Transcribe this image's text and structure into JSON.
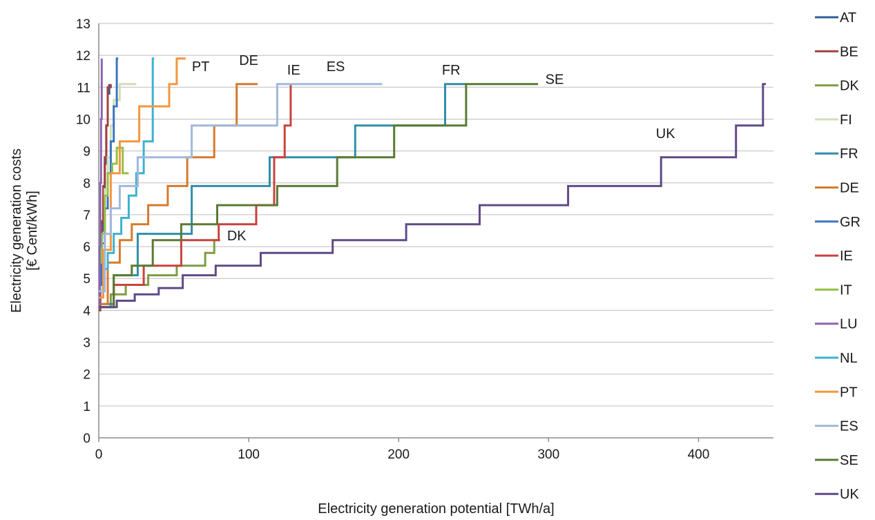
{
  "chart_data": {
    "type": "line",
    "step": true,
    "xlabel": "Electricity generation potential [TWh/a]",
    "ylabel": "Electricity generation costs [€ Cent/kWh]",
    "ylabel_lines": [
      "Electricity generation costs",
      "[€ Cent/kWh]"
    ],
    "xlim": [
      0,
      450
    ],
    "ylim": [
      0,
      13
    ],
    "xticks": [
      0,
      100,
      200,
      300,
      400
    ],
    "yticks": [
      0,
      1,
      2,
      3,
      4,
      5,
      6,
      7,
      8,
      9,
      10,
      11,
      12,
      13
    ],
    "grid": "horizontal",
    "legend_position": "right",
    "series": [
      {
        "name": "AT",
        "color": "#2e5f96",
        "x": [
          0,
          1,
          2,
          3,
          4,
          5,
          6,
          7
        ],
        "y": [
          4.1,
          5.2,
          6.5,
          7.6,
          8.6,
          9.8,
          10.8,
          11.1
        ]
      },
      {
        "name": "BE",
        "color": "#a4403d",
        "x": [
          0,
          1,
          2,
          3,
          4,
          5,
          6,
          8
        ],
        "y": [
          4.0,
          5.5,
          6.8,
          7.9,
          8.8,
          9.8,
          11.0,
          11.1
        ]
      },
      {
        "name": "DK",
        "color": "#7f9c43",
        "x": [
          0,
          8,
          18,
          33,
          52,
          71,
          77,
          81
        ],
        "y": [
          4.1,
          4.5,
          4.8,
          5.1,
          5.4,
          5.8,
          6.2,
          6.2
        ]
      },
      {
        "name": "FI",
        "color": "#cfdfb6",
        "x": [
          0,
          2,
          4,
          6,
          8,
          10,
          14,
          25
        ],
        "y": [
          4.6,
          6.3,
          7.8,
          8.8,
          9.8,
          10.6,
          11.1,
          11.1
        ]
      },
      {
        "name": "FR",
        "color": "#2f8ea8",
        "x": [
          0,
          10,
          26,
          62,
          114,
          171,
          231,
          245
        ],
        "y": [
          4.2,
          5.1,
          6.4,
          7.9,
          8.8,
          9.8,
          11.1,
          11.1
        ]
      },
      {
        "name": "DE",
        "color": "#d57a2d",
        "x": [
          0,
          6,
          14,
          22,
          33,
          46,
          59,
          77,
          92,
          106
        ],
        "y": [
          4.2,
          5.5,
          6.2,
          6.7,
          7.3,
          7.9,
          8.8,
          9.8,
          11.1,
          11.1
        ]
      },
      {
        "name": "GR",
        "color": "#3b74c4",
        "x": [
          0,
          2,
          4,
          6,
          8,
          10,
          12,
          13
        ],
        "y": [
          4.8,
          6.1,
          7.2,
          8.3,
          9.3,
          10.4,
          11.9,
          11.9
        ]
      },
      {
        "name": "IE",
        "color": "#c9423d",
        "x": [
          0,
          10,
          30,
          55,
          80,
          105,
          117,
          124,
          128
        ],
        "y": [
          4.1,
          4.8,
          5.4,
          6.2,
          6.7,
          7.3,
          8.8,
          9.8,
          11.1
        ]
      },
      {
        "name": "IT",
        "color": "#93c044",
        "x": [
          0,
          2,
          4,
          6,
          9,
          12,
          16,
          20
        ],
        "y": [
          5.5,
          6.4,
          7.6,
          8.3,
          8.6,
          9.1,
          8.3,
          8.3
        ]
      },
      {
        "name": "LU",
        "color": "#8c64b0",
        "x": [
          0,
          0.5,
          1,
          1.5,
          2
        ],
        "y": [
          4.1,
          6.0,
          8.0,
          10.0,
          11.9
        ]
      },
      {
        "name": "NL",
        "color": "#3eb1cf",
        "x": [
          0,
          3,
          6,
          10,
          15,
          20,
          25,
          30,
          36,
          37
        ],
        "y": [
          4.6,
          5.3,
          5.8,
          6.4,
          6.9,
          7.6,
          8.3,
          9.3,
          11.9,
          11.9
        ]
      },
      {
        "name": "PT",
        "color": "#f3963f",
        "x": [
          0,
          3,
          8,
          14,
          27,
          47,
          52,
          58
        ],
        "y": [
          4.4,
          5.9,
          8.3,
          9.3,
          10.4,
          11.1,
          11.9,
          11.9
        ]
      },
      {
        "name": "ES",
        "color": "#9fb8dc",
        "x": [
          0,
          4,
          8,
          14,
          26,
          36,
          62,
          119,
          189
        ],
        "y": [
          4.6,
          6.4,
          7.2,
          7.9,
          8.8,
          8.8,
          9.8,
          11.1,
          11.1
        ]
      },
      {
        "name": "SE",
        "color": "#5a7a32",
        "x": [
          0,
          10,
          22,
          36,
          55,
          79,
          119,
          159,
          197,
          245,
          293
        ],
        "y": [
          4.1,
          5.1,
          5.4,
          6.2,
          6.7,
          7.3,
          7.9,
          8.8,
          9.8,
          11.1,
          11.1
        ]
      },
      {
        "name": "UK",
        "color": "#5f4a86",
        "x": [
          0,
          12,
          24,
          40,
          56,
          78,
          108,
          156,
          205,
          254,
          313,
          375,
          425,
          443,
          445
        ],
        "y": [
          4.1,
          4.3,
          4.5,
          4.7,
          5.1,
          5.4,
          5.8,
          6.2,
          6.7,
          7.3,
          7.9,
          8.8,
          9.8,
          11.1,
          11.1
        ]
      }
    ],
    "annotations": [
      {
        "text": "PT",
        "x": 68,
        "y": 11.5
      },
      {
        "text": "DE",
        "x": 100,
        "y": 11.7
      },
      {
        "text": "IE",
        "x": 130,
        "y": 11.4
      },
      {
        "text": "ES",
        "x": 158,
        "y": 11.5
      },
      {
        "text": "FR",
        "x": 235,
        "y": 11.4
      },
      {
        "text": "SE",
        "x": 304,
        "y": 11.1
      },
      {
        "text": "UK",
        "x": 378,
        "y": 9.4
      },
      {
        "text": "DK",
        "x": 92,
        "y": 6.2
      }
    ]
  }
}
